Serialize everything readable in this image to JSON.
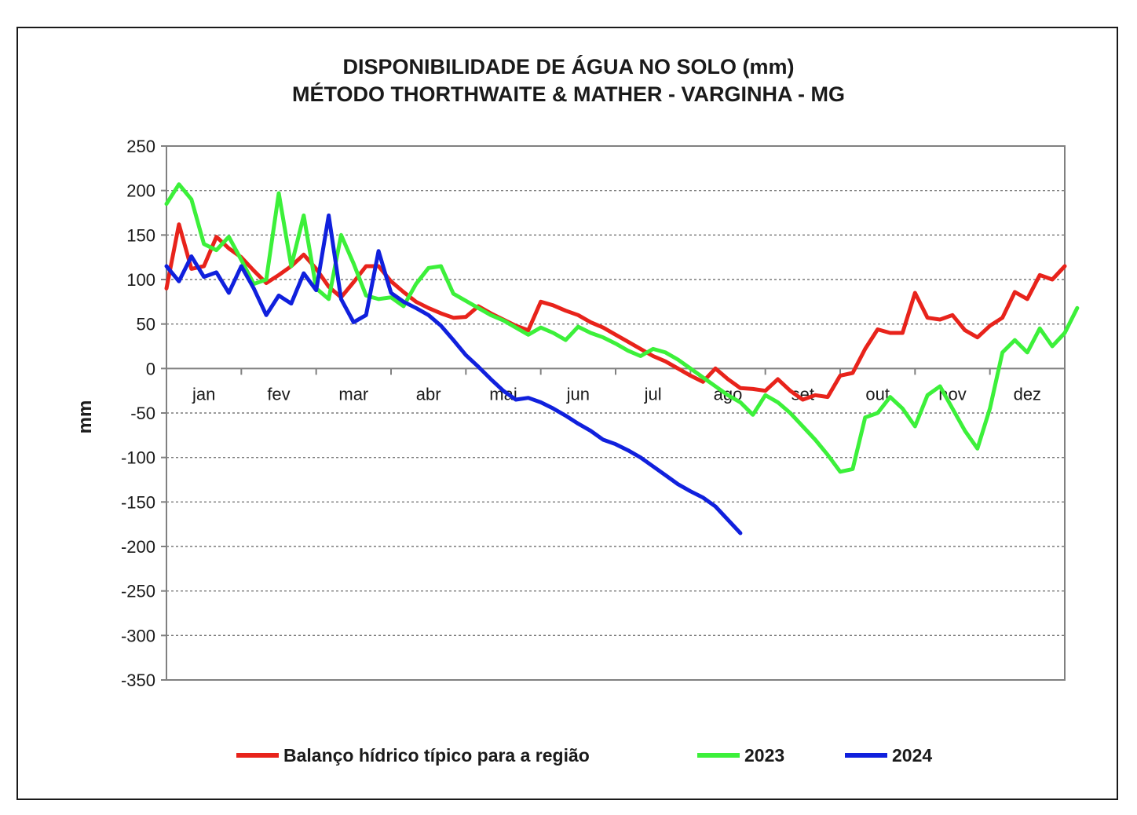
{
  "chart_data": {
    "type": "line",
    "title_lines": [
      "DISPONIBILIDADE DE ÁGUA NO SOLO (mm)",
      "MÉTODO THORTHWAITE & MATHER - VARGINHA - MG"
    ],
    "xlabel": "",
    "ylabel": "mm",
    "ylim": [
      -350,
      250
    ],
    "yticks": [
      250,
      200,
      150,
      100,
      50,
      0,
      -50,
      -100,
      -150,
      -200,
      -250,
      -300,
      -350
    ],
    "xlim": [
      0,
      72
    ],
    "x_unit": "ten-day period (decêndio), 6 per month",
    "month_labels": [
      "jan",
      "fev",
      "mar",
      "abr",
      "mai",
      "jun",
      "jul",
      "ago",
      "set",
      "out",
      "nov",
      "dez"
    ],
    "grid": "horizontal dashed",
    "legend_position": "bottom",
    "series": [
      {
        "name": "Balanço hídrico típico para a região",
        "color": "#e8231b",
        "points": [
          [
            0,
            90
          ],
          [
            1,
            162
          ],
          [
            2,
            112
          ],
          [
            3,
            115
          ],
          [
            4,
            148
          ],
          [
            5,
            135
          ],
          [
            6,
            125
          ],
          [
            7,
            110
          ],
          [
            8,
            96
          ],
          [
            9,
            105
          ],
          [
            10,
            115
          ],
          [
            11,
            128
          ],
          [
            12,
            112
          ],
          [
            13,
            92
          ],
          [
            14,
            80
          ],
          [
            15,
            97
          ],
          [
            16,
            115
          ],
          [
            17,
            115
          ],
          [
            18,
            98
          ],
          [
            19,
            86
          ],
          [
            20,
            75
          ],
          [
            21,
            68
          ],
          [
            22,
            62
          ],
          [
            23,
            57
          ],
          [
            24,
            58
          ],
          [
            25,
            70
          ],
          [
            26,
            62
          ],
          [
            27,
            55
          ],
          [
            28,
            48
          ],
          [
            29,
            43
          ],
          [
            30,
            75
          ],
          [
            31,
            71
          ],
          [
            32,
            65
          ],
          [
            33,
            60
          ],
          [
            34,
            52
          ],
          [
            35,
            46
          ],
          [
            36,
            38
          ],
          [
            37,
            30
          ],
          [
            38,
            22
          ],
          [
            39,
            14
          ],
          [
            40,
            8
          ],
          [
            41,
            0
          ],
          [
            42,
            -8
          ],
          [
            43,
            -15
          ],
          [
            44,
            0
          ],
          [
            45,
            -12
          ],
          [
            46,
            -22
          ],
          [
            47,
            -23
          ],
          [
            48,
            -25
          ],
          [
            49,
            -12
          ],
          [
            50,
            -25
          ],
          [
            51,
            -35
          ],
          [
            52,
            -30
          ],
          [
            53,
            -32
          ],
          [
            54,
            -8
          ],
          [
            55,
            -5
          ],
          [
            56,
            22
          ],
          [
            57,
            44
          ],
          [
            58,
            40
          ],
          [
            59,
            40
          ],
          [
            60,
            85
          ],
          [
            61,
            57
          ],
          [
            62,
            55
          ],
          [
            63,
            60
          ],
          [
            64,
            43
          ],
          [
            65,
            35
          ],
          [
            66,
            48
          ],
          [
            67,
            57
          ],
          [
            68,
            86
          ],
          [
            69,
            78
          ],
          [
            70,
            105
          ],
          [
            71,
            100
          ],
          [
            72,
            115
          ]
        ]
      },
      {
        "name": "2023",
        "color": "#3cf03a",
        "points": [
          [
            0,
            185
          ],
          [
            1,
            207
          ],
          [
            2,
            190
          ],
          [
            3,
            140
          ],
          [
            4,
            133
          ],
          [
            5,
            148
          ],
          [
            6,
            122
          ],
          [
            7,
            95
          ],
          [
            8,
            100
          ],
          [
            9,
            197
          ],
          [
            10,
            115
          ],
          [
            11,
            172
          ],
          [
            12,
            90
          ],
          [
            13,
            78
          ],
          [
            14,
            150
          ],
          [
            15,
            118
          ],
          [
            16,
            82
          ],
          [
            17,
            78
          ],
          [
            18,
            80
          ],
          [
            19,
            70
          ],
          [
            20,
            95
          ],
          [
            21,
            113
          ],
          [
            22,
            115
          ],
          [
            23,
            84
          ],
          [
            24,
            76
          ],
          [
            25,
            68
          ],
          [
            26,
            60
          ],
          [
            27,
            54
          ],
          [
            28,
            46
          ],
          [
            29,
            38
          ],
          [
            30,
            46
          ],
          [
            31,
            40
          ],
          [
            32,
            32
          ],
          [
            33,
            47
          ],
          [
            34,
            40
          ],
          [
            35,
            35
          ],
          [
            36,
            28
          ],
          [
            37,
            20
          ],
          [
            38,
            14
          ],
          [
            39,
            22
          ],
          [
            40,
            18
          ],
          [
            41,
            10
          ],
          [
            42,
            0
          ],
          [
            43,
            -10
          ],
          [
            44,
            -20
          ],
          [
            45,
            -30
          ],
          [
            46,
            -38
          ],
          [
            47,
            -52
          ],
          [
            48,
            -30
          ],
          [
            49,
            -38
          ],
          [
            50,
            -50
          ],
          [
            51,
            -65
          ],
          [
            52,
            -80
          ],
          [
            53,
            -97
          ],
          [
            54,
            -116
          ],
          [
            55,
            -113
          ],
          [
            56,
            -55
          ],
          [
            57,
            -50
          ],
          [
            58,
            -32
          ],
          [
            59,
            -45
          ],
          [
            60,
            -65
          ],
          [
            61,
            -30
          ],
          [
            62,
            -20
          ],
          [
            63,
            -45
          ],
          [
            64,
            -70
          ],
          [
            65,
            -90
          ],
          [
            66,
            -45
          ],
          [
            67,
            18
          ],
          [
            68,
            32
          ],
          [
            69,
            18
          ],
          [
            70,
            45
          ],
          [
            71,
            25
          ],
          [
            72,
            40
          ],
          [
            73,
            68
          ]
        ]
      },
      {
        "name": "2024",
        "color": "#1020dd",
        "points": [
          [
            0,
            115
          ],
          [
            1,
            98
          ],
          [
            2,
            126
          ],
          [
            3,
            103
          ],
          [
            4,
            108
          ],
          [
            5,
            85
          ],
          [
            6,
            115
          ],
          [
            7,
            90
          ],
          [
            8,
            60
          ],
          [
            9,
            82
          ],
          [
            10,
            73
          ],
          [
            11,
            107
          ],
          [
            12,
            88
          ],
          [
            13,
            172
          ],
          [
            14,
            78
          ],
          [
            15,
            52
          ],
          [
            16,
            60
          ],
          [
            17,
            132
          ],
          [
            18,
            85
          ],
          [
            19,
            75
          ],
          [
            20,
            68
          ],
          [
            21,
            60
          ],
          [
            22,
            48
          ],
          [
            23,
            32
          ],
          [
            24,
            15
          ],
          [
            25,
            2
          ],
          [
            26,
            -12
          ],
          [
            27,
            -25
          ],
          [
            28,
            -35
          ],
          [
            29,
            -33
          ],
          [
            30,
            -38
          ],
          [
            31,
            -45
          ],
          [
            32,
            -53
          ],
          [
            33,
            -62
          ],
          [
            34,
            -70
          ],
          [
            35,
            -80
          ],
          [
            36,
            -85
          ],
          [
            37,
            -92
          ],
          [
            38,
            -100
          ],
          [
            39,
            -110
          ],
          [
            40,
            -120
          ],
          [
            41,
            -130
          ],
          [
            42,
            -138
          ],
          [
            43,
            -145
          ],
          [
            44,
            -155
          ],
          [
            45,
            -170
          ],
          [
            46,
            -185
          ]
        ]
      }
    ]
  }
}
